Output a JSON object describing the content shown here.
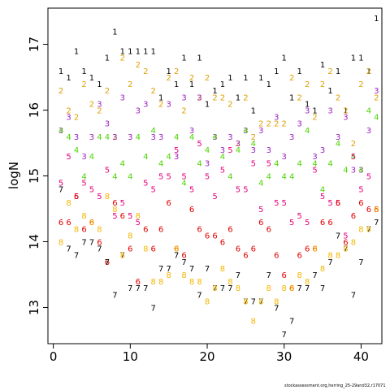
{
  "chart_data": {
    "type": "scatter",
    "title": "",
    "xlabel": "",
    "ylabel": "logN",
    "xlim": [
      -0.7,
      42.7
    ],
    "ylim": [
      12.45,
      17.55
    ],
    "x_ticks": [
      0,
      10,
      20,
      30,
      40
    ],
    "y_ticks": [
      13,
      14,
      15,
      16,
      17
    ],
    "grid": false,
    "legend": "none",
    "marker": "age-number",
    "colors": {
      "1": "#000000",
      "2": "#DF9F00",
      "3": "#9A1FBF",
      "4": "#4CD500",
      "5": "#E6007B",
      "6": "#E20000",
      "7": "#000000",
      "8": "#F3B600"
    },
    "series": [
      {
        "name": "1",
        "x": [
          1,
          2,
          3,
          4,
          5,
          6,
          7,
          8,
          9,
          10,
          11,
          12,
          13,
          14,
          15,
          16,
          17,
          18,
          19,
          20,
          21,
          22,
          23,
          24,
          25,
          26,
          27,
          28,
          29,
          30,
          31,
          32,
          33,
          34,
          35,
          36,
          37,
          38,
          39,
          40,
          41,
          42
        ],
        "y": [
          16.6,
          16.5,
          16.9,
          16.6,
          16.5,
          16.4,
          16.8,
          17.2,
          16.9,
          16.9,
          16.9,
          16.9,
          16.9,
          16.2,
          16.6,
          16.4,
          16.8,
          16.4,
          16.8,
          16.1,
          16.3,
          16.4,
          16.5,
          16.2,
          16.5,
          16.0,
          16.5,
          16.4,
          16.6,
          16.8,
          16.2,
          16.6,
          16.1,
          16.0,
          16.7,
          16.3,
          16.6,
          16.0,
          16.8,
          16.8,
          16.6,
          17.4
        ]
      },
      {
        "name": "2",
        "x": [
          1,
          2,
          3,
          4,
          5,
          6,
          7,
          8,
          9,
          10,
          11,
          12,
          13,
          14,
          15,
          16,
          17,
          18,
          19,
          20,
          21,
          22,
          23,
          24,
          25,
          26,
          27,
          28,
          29,
          30,
          31,
          32,
          33,
          34,
          35,
          36,
          37,
          38,
          39,
          40,
          41,
          42
        ],
        "y": [
          16.3,
          16.0,
          15.9,
          16.4,
          16.1,
          16.0,
          16.3,
          15.6,
          16.8,
          16.4,
          16.7,
          16.6,
          16.3,
          16.1,
          16.5,
          16.6,
          16.0,
          16.5,
          16.2,
          16.5,
          16.2,
          16.2,
          16.1,
          15.5,
          16.2,
          15.6,
          15.8,
          15.8,
          15.8,
          15.8,
          16.5,
          16.2,
          16.4,
          15.9,
          16.4,
          16.6,
          16.2,
          16.0,
          15.5,
          16.4,
          16.6,
          16.2
        ]
      },
      {
        "name": "3",
        "x": [
          1,
          2,
          3,
          4,
          5,
          6,
          7,
          8,
          9,
          10,
          11,
          12,
          13,
          14,
          15,
          16,
          17,
          18,
          19,
          20,
          21,
          22,
          23,
          24,
          25,
          26,
          27,
          28,
          29,
          30,
          31,
          32,
          33,
          34,
          35,
          36,
          37,
          38,
          39,
          40,
          41,
          42
        ],
        "y": [
          15.7,
          15.9,
          15.6,
          15.3,
          15.6,
          16.1,
          15.8,
          15.6,
          16.2,
          15.6,
          16.0,
          16.1,
          15.6,
          15.6,
          16.1,
          15.3,
          16.2,
          15.7,
          16.2,
          15.2,
          15.6,
          15.4,
          15.6,
          15.5,
          15.7,
          15.4,
          15.7,
          15.4,
          15.9,
          15.3,
          15.6,
          15.8,
          16.0,
          15.3,
          15.4,
          16.0,
          15.6,
          15.9,
          15.1,
          15.1,
          15.7,
          16.3
        ]
      },
      {
        "name": "4",
        "x": [
          1,
          2,
          3,
          4,
          5,
          6,
          7,
          8,
          9,
          10,
          11,
          12,
          13,
          14,
          15,
          16,
          17,
          18,
          19,
          20,
          21,
          22,
          23,
          24,
          25,
          26,
          27,
          28,
          29,
          30,
          31,
          32,
          33,
          34,
          35,
          36,
          37,
          38,
          39,
          40,
          41,
          42
        ],
        "y": [
          15.7,
          15.6,
          15.4,
          15.0,
          15.3,
          15.6,
          15.6,
          15.0,
          15.2,
          15.0,
          15.6,
          15.3,
          15.7,
          15.2,
          15.3,
          15.6,
          14.9,
          15.6,
          15.2,
          15.4,
          15.6,
          15.3,
          15.0,
          15.4,
          15.7,
          15.5,
          14.9,
          15.0,
          15.2,
          15.0,
          15.0,
          15.2,
          15.7,
          15.2,
          14.8,
          15.2,
          15.5,
          15.1,
          15.3,
          15.1,
          16.0,
          15.9
        ]
      },
      {
        "name": "5",
        "x": [
          1,
          2,
          3,
          4,
          5,
          6,
          7,
          8,
          9,
          10,
          11,
          12,
          13,
          14,
          15,
          16,
          17,
          18,
          19,
          20,
          21,
          22,
          23,
          24,
          25,
          26,
          27,
          28,
          29,
          30,
          31,
          32,
          33,
          34,
          35,
          36,
          37,
          38,
          39,
          40,
          41,
          42
        ],
        "y": [
          14.9,
          15.3,
          14.7,
          14.9,
          14.8,
          14.7,
          15.1,
          14.4,
          14.6,
          14.4,
          14.3,
          14.9,
          14.8,
          15.0,
          15.0,
          15.4,
          15.0,
          14.8,
          15.5,
          15.0,
          14.7,
          15.1,
          15.4,
          14.8,
          14.8,
          15.2,
          14.5,
          15.2,
          14.6,
          14.6,
          14.3,
          14.4,
          14.3,
          15.1,
          14.7,
          14.6,
          14.6,
          14.1,
          15.3,
          14.8,
          15.0,
          14.5
        ]
      },
      {
        "name": "6",
        "x": [
          1,
          2,
          3,
          4,
          5,
          6,
          7,
          8,
          9,
          10,
          11,
          12,
          13,
          14,
          15,
          16,
          17,
          18,
          19,
          20,
          21,
          22,
          23,
          24,
          25,
          26,
          27,
          28,
          29,
          30,
          31,
          32,
          33,
          34,
          35,
          36,
          37,
          38,
          39,
          40,
          41,
          42
        ],
        "y": [
          14.3,
          14.3,
          14.7,
          14.2,
          14.3,
          14.0,
          13.7,
          14.6,
          14.4,
          13.9,
          13.4,
          14.2,
          13.9,
          14.2,
          14.6,
          13.9,
          13.8,
          14.5,
          14.2,
          14.1,
          14.1,
          14.0,
          14.2,
          13.9,
          13.8,
          13.9,
          14.3,
          14.2,
          13.8,
          13.5,
          13.3,
          13.8,
          13.9,
          13.9,
          14.3,
          14.3,
          14.6,
          14.0,
          14.4,
          14.6,
          14.5,
          14.5
        ]
      },
      {
        "name": "7",
        "x": [
          1,
          2,
          3,
          4,
          5,
          6,
          7,
          8,
          9,
          10,
          11,
          12,
          13,
          14,
          15,
          16,
          17,
          18,
          19,
          20,
          21,
          22,
          23,
          24,
          25,
          26,
          27,
          28,
          29,
          30,
          31,
          32,
          33,
          34,
          35,
          36,
          37,
          38,
          39,
          40,
          41,
          42
        ],
        "y": [
          14.8,
          13.9,
          13.8,
          14.0,
          14.0,
          13.9,
          13.7,
          13.2,
          13.8,
          13.3,
          13.3,
          13.3,
          13.0,
          13.6,
          13.6,
          13.8,
          13.7,
          13.6,
          13.2,
          13.6,
          13.3,
          13.3,
          13.3,
          13.5,
          13.1,
          13.1,
          13.1,
          13.5,
          13.0,
          12.6,
          12.8,
          13.3,
          13.3,
          13.5,
          13.3,
          13.7,
          14.1,
          13.9,
          13.2,
          13.7,
          14.2,
          14.3
        ]
      },
      {
        "name": "8",
        "x": [
          1,
          2,
          3,
          4,
          5,
          6,
          7,
          8,
          9,
          10,
          11,
          12,
          13,
          14,
          15,
          16,
          17,
          18,
          19,
          20,
          21,
          22,
          23,
          24,
          25,
          26,
          27,
          28,
          29,
          30,
          31,
          32,
          33,
          34,
          35,
          36,
          37,
          38,
          39,
          40,
          41,
          42
        ],
        "y": [
          14.0,
          14.6,
          14.2,
          14.4,
          14.3,
          14.2,
          14.7,
          14.5,
          13.8,
          14.1,
          14.4,
          13.9,
          13.4,
          13.4,
          13.5,
          13.9,
          13.5,
          13.4,
          13.4,
          13.1,
          13.3,
          13.6,
          13.4,
          13.3,
          13.1,
          12.8,
          13.1,
          13.3,
          13.1,
          13.3,
          13.3,
          13.5,
          13.4,
          13.9,
          13.6,
          13.8,
          13.8,
          13.9,
          14.0,
          14.2,
          14.2,
          14.5
        ]
      }
    ]
  },
  "footer": {
    "credit": "stockassessment.org,herring_25-29and32,r17071"
  }
}
